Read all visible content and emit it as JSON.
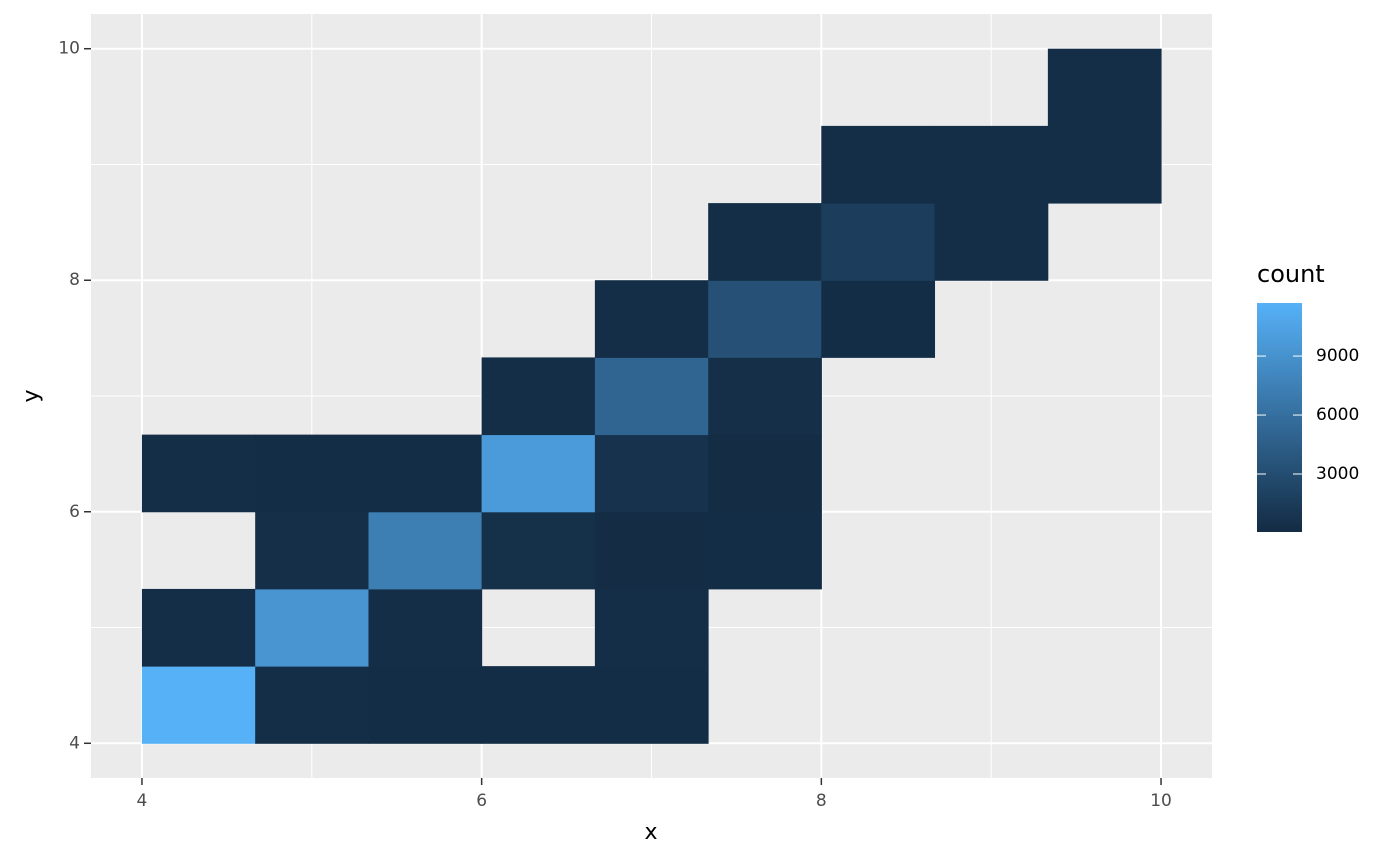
{
  "chart_data": {
    "type": "bin2d",
    "x_label": "x",
    "y_label": "y",
    "legend_title": "count",
    "xlim": [
      3.7,
      10.3
    ],
    "ylim": [
      3.7,
      10.3
    ],
    "xticks": [
      4,
      6,
      8,
      10
    ],
    "yticks": [
      4,
      6,
      8,
      10
    ],
    "xminor": [
      5,
      7,
      9
    ],
    "yminor": [
      5,
      7,
      9
    ],
    "grid": true,
    "binwidth": 0.6667,
    "colorscale": {
      "low": "#132B43",
      "high": "#56B1F7"
    },
    "clim": [
      50,
      11700
    ],
    "cticks": [
      3000,
      6000,
      9000
    ],
    "x": [
      4.333,
      5,
      5.667,
      6.333,
      7,
      4.333,
      5,
      5.667,
      7,
      5,
      5.667,
      6.333,
      7,
      7.667,
      4.333,
      5,
      5.667,
      6.333,
      7,
      7.667,
      6.333,
      7,
      7.667,
      7,
      7.667,
      8.333,
      7.667,
      8.333,
      9,
      8.333,
      9,
      9.667,
      9.667
    ],
    "y": [
      4.333,
      4.333,
      4.333,
      4.333,
      4.333,
      5,
      5,
      5,
      5,
      5.667,
      5.667,
      5.667,
      5.667,
      5.667,
      6.333,
      6.333,
      6.333,
      6.333,
      6.333,
      6.333,
      7,
      7,
      7,
      7.667,
      7.667,
      7.667,
      8.333,
      8.333,
      8.333,
      9,
      9,
      9,
      9.667
    ],
    "values": [
      11700,
      300,
      250,
      250,
      250,
      300,
      9300,
      350,
      300,
      400,
      7300,
      450,
      200,
      250,
      300,
      250,
      250,
      9800,
      700,
      200,
      350,
      5100,
      400,
      350,
      3300,
      250,
      300,
      1700,
      350,
      300,
      300,
      300,
      300
    ]
  }
}
